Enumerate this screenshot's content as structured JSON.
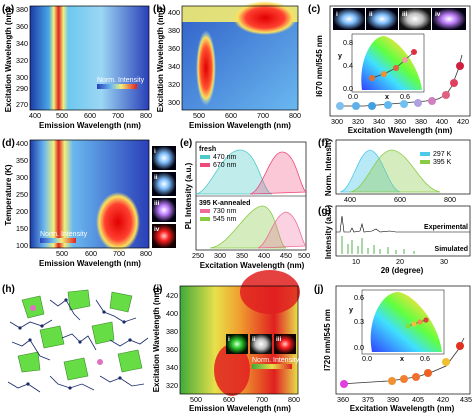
{
  "panels": {
    "a": {
      "label": "(a)",
      "xlabel": "Emission Wavelength (nm)",
      "ylabel": "Excitation Wavelength (nm)",
      "xticks": [
        "400",
        "500",
        "600",
        "700",
        "800"
      ],
      "yticks": [
        "380",
        "360",
        "340",
        "320",
        "300",
        "290",
        "270"
      ],
      "legend": "Norm. Intensity"
    },
    "b": {
      "label": "(b)",
      "xlabel": "Emission Wavelength (nm)",
      "ylabel": "Excitation Wavelength (nm)",
      "xticks": [
        "500",
        "600",
        "700",
        "800"
      ],
      "yticks": [
        "400",
        "380",
        "360",
        "340",
        "320",
        "300"
      ]
    },
    "c": {
      "label": "(c)",
      "xlabel": "Excitation Wavelength (nm)",
      "ylabel": "I670 nm/I545 nm",
      "xticks": [
        "300",
        "320",
        "340",
        "360",
        "380",
        "400",
        "420"
      ],
      "insets": [
        "i",
        "ii",
        "iii",
        "iv"
      ],
      "cie_xticks": [
        "0.0",
        "0.6"
      ],
      "cie_yticks": [
        "0.8",
        "0.4",
        "0.0"
      ],
      "cie_xlabel": "x",
      "cie_ylabel": "y"
    },
    "d": {
      "label": "(d)",
      "xlabel": "Emission Wavelength (nm)",
      "ylabel": "Temperature (K)",
      "xticks": [
        "500",
        "600",
        "700",
        "800"
      ],
      "yticks": [
        "400",
        "350",
        "300",
        "250",
        "200",
        "150",
        "100"
      ],
      "legend": "Norm. Intensity",
      "insets": [
        "i",
        "ii",
        "iii",
        "iv"
      ]
    },
    "e": {
      "label": "(e)",
      "xlabel": "Excitation Wavelength (nm)",
      "ylabel": "PL Intensity (a.u.)",
      "xticks": [
        "250",
        "300",
        "350",
        "400",
        "450",
        "500"
      ],
      "fresh_label": "fresh",
      "fresh_legend": [
        "470 nm",
        "670 nm"
      ],
      "annealed_label": "395 K-annealed",
      "annealed_legend": [
        "730 nm",
        "545 nm"
      ]
    },
    "f": {
      "label": "(f)",
      "ylabel": "Norm. Intensity",
      "legend": [
        "297 K",
        "395 K"
      ],
      "xticks": [
        "400",
        "600",
        "800"
      ]
    },
    "g": {
      "label": "(g)",
      "xlabel": "2θ (degree)",
      "ylabel": "Intensity (a.u.)",
      "xticks": [
        "10",
        "20",
        "30"
      ],
      "experimental_label": "Experimental",
      "simulated_label": "Simulated"
    },
    "h": {
      "label": "(h)"
    },
    "i": {
      "label": "(i)",
      "xlabel": "Emission Wavelength (nm)",
      "ylabel": "Excitation Wavelength (nm)",
      "xticks": [
        "500",
        "600",
        "700",
        "800"
      ],
      "yticks": [
        "420",
        "400",
        "380",
        "360",
        "340",
        "320"
      ],
      "legend": "Norm. Intensity",
      "insets": [
        "i",
        "ii",
        "iii"
      ]
    },
    "j": {
      "label": "(j)",
      "xlabel": "Excitation Wavelength (nm)",
      "ylabel": "I720 nm/I545 nm",
      "xticks": [
        "360",
        "375",
        "390",
        "405",
        "420",
        "435"
      ],
      "cie_xticks": [
        "0.0",
        "0.6"
      ],
      "cie_yticks": [
        "0.6",
        "0.3",
        "0.0"
      ],
      "cie_xlabel": "x",
      "cie_ylabel": "y"
    }
  },
  "colors": {
    "map_blue": "#2a3fb8",
    "map_red": "#e02020",
    "map_yellow": "#e8e04a",
    "map_green": "#3faa3a",
    "fresh_470": "#4ec9c9",
    "fresh_670": "#f04a7a",
    "annealed_730": "#f06a9a",
    "annealed_545": "#88cc44"
  }
}
